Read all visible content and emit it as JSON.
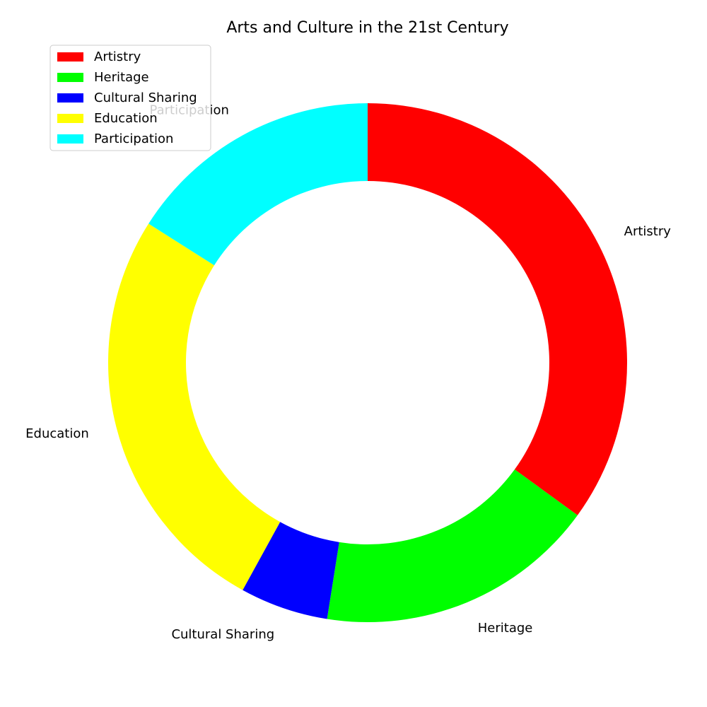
{
  "chart_data": {
    "type": "pie",
    "variant": "donut",
    "title": "Arts and Culture in the 21st Century",
    "categories": [
      "Artistry",
      "Heritage",
      "Cultural Sharing",
      "Education",
      "Participation"
    ],
    "values": [
      35,
      17.5,
      5.5,
      26,
      16
    ],
    "colors": [
      "#ff0000",
      "#00ff00",
      "#0000ff",
      "#ffff00",
      "#00ffff"
    ],
    "start_angle_deg": 90,
    "direction": "clockwise",
    "legend": {
      "placement": "upper-left",
      "entries": [
        "Artistry",
        "Heritage",
        "Cultural Sharing",
        "Education",
        "Participation"
      ]
    }
  }
}
